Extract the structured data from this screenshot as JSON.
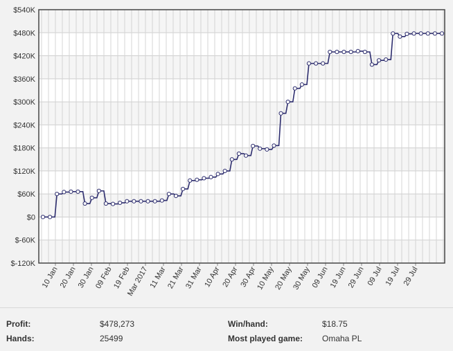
{
  "chart_data": {
    "type": "line",
    "title": "",
    "xlabel": "",
    "ylabel": "",
    "ylim": [
      -120000,
      540000
    ],
    "y_ticks": [
      -120000,
      -60000,
      0,
      60000,
      120000,
      180000,
      240000,
      300000,
      360000,
      420000,
      480000,
      540000
    ],
    "y_tick_labels": [
      "$-120K",
      "$-60K",
      "$0",
      "$60K",
      "$120K",
      "$180K",
      "$240K",
      "$300K",
      "$360K",
      "$420K",
      "$480K",
      "$540K"
    ],
    "x_tick_labels": [
      "10 Jan",
      "20 Jan",
      "30 Jan",
      "09 Feb",
      "19 Feb",
      "Mar 2017",
      "11 Mar",
      "21 Mar",
      "31 Mar",
      "10 Apr",
      "20 Apr",
      "30 Apr",
      "10 May",
      "20 May",
      "30 May",
      "09 Jun",
      "19 Jun",
      "29 Jun",
      "09 Jul",
      "19 Jul",
      "29 Jul"
    ],
    "grid": true,
    "legend": "none",
    "series": [
      {
        "color": "#2d2d6e",
        "values": [
          0,
          0,
          60000,
          65000,
          66000,
          66000,
          35000,
          50000,
          68000,
          35000,
          34000,
          37000,
          41000,
          41000,
          41000,
          41000,
          41000,
          43000,
          60000,
          55000,
          73000,
          95000,
          97000,
          101000,
          104000,
          112000,
          120000,
          150000,
          165000,
          160000,
          185000,
          178000,
          176000,
          186000,
          270000,
          300000,
          335000,
          345000,
          400000,
          400000,
          400000,
          430000,
          430000,
          430000,
          430000,
          432000,
          430000,
          397000,
          408000,
          410000,
          478000,
          470000,
          477000,
          478000,
          478000,
          478000,
          478000,
          478000
        ]
      }
    ]
  },
  "stats": {
    "profit_label": "Profit:",
    "profit_value": "$478,273",
    "hands_label": "Hands:",
    "hands_value": "25499",
    "winhand_label": "Win/hand:",
    "winhand_value": "$18.75",
    "game_label": "Most played game:",
    "game_value": "Omaha PL"
  }
}
